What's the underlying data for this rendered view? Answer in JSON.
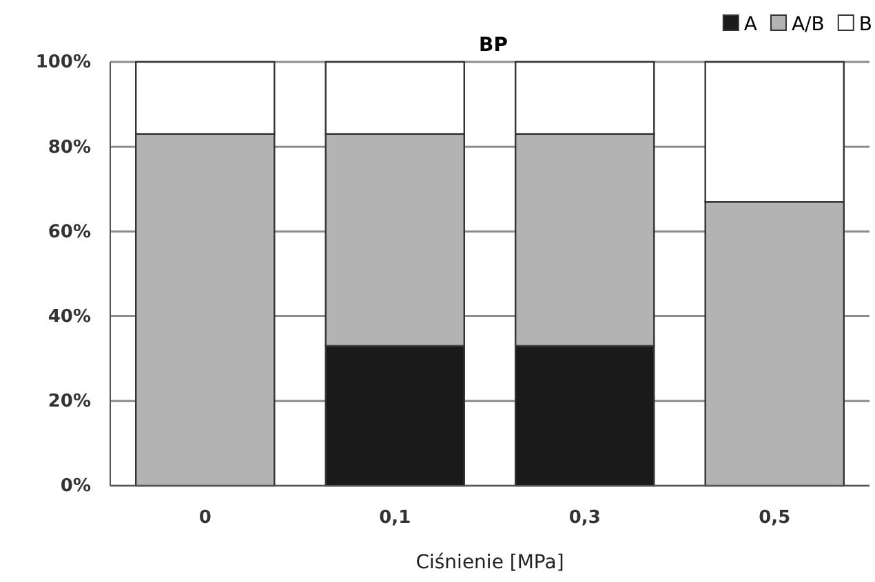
{
  "chart_data": {
    "type": "bar",
    "title": "BP",
    "xlabel": "Ciśnienie [MPa]",
    "categories": [
      "0",
      "0,1",
      "0,3",
      "0,5"
    ],
    "stacked": true,
    "series": [
      {
        "name": "A",
        "color": "#1a1a1a",
        "values": [
          0,
          33,
          33,
          0
        ]
      },
      {
        "name": "A/B",
        "color": "#b3b3b3",
        "values": [
          83,
          50,
          50,
          67
        ]
      },
      {
        "name": "B",
        "color": "#ffffff",
        "values": [
          17,
          17,
          17,
          33
        ]
      }
    ],
    "ylim": [
      0,
      100
    ],
    "yticks": [
      {
        "value": 0,
        "label": "0%"
      },
      {
        "value": 20,
        "label": "20%"
      },
      {
        "value": 40,
        "label": "40%"
      },
      {
        "value": 60,
        "label": "60%"
      },
      {
        "value": 80,
        "label": "80%"
      },
      {
        "value": 100,
        "label": "100%"
      }
    ],
    "grid": "y",
    "legend": "top right"
  }
}
